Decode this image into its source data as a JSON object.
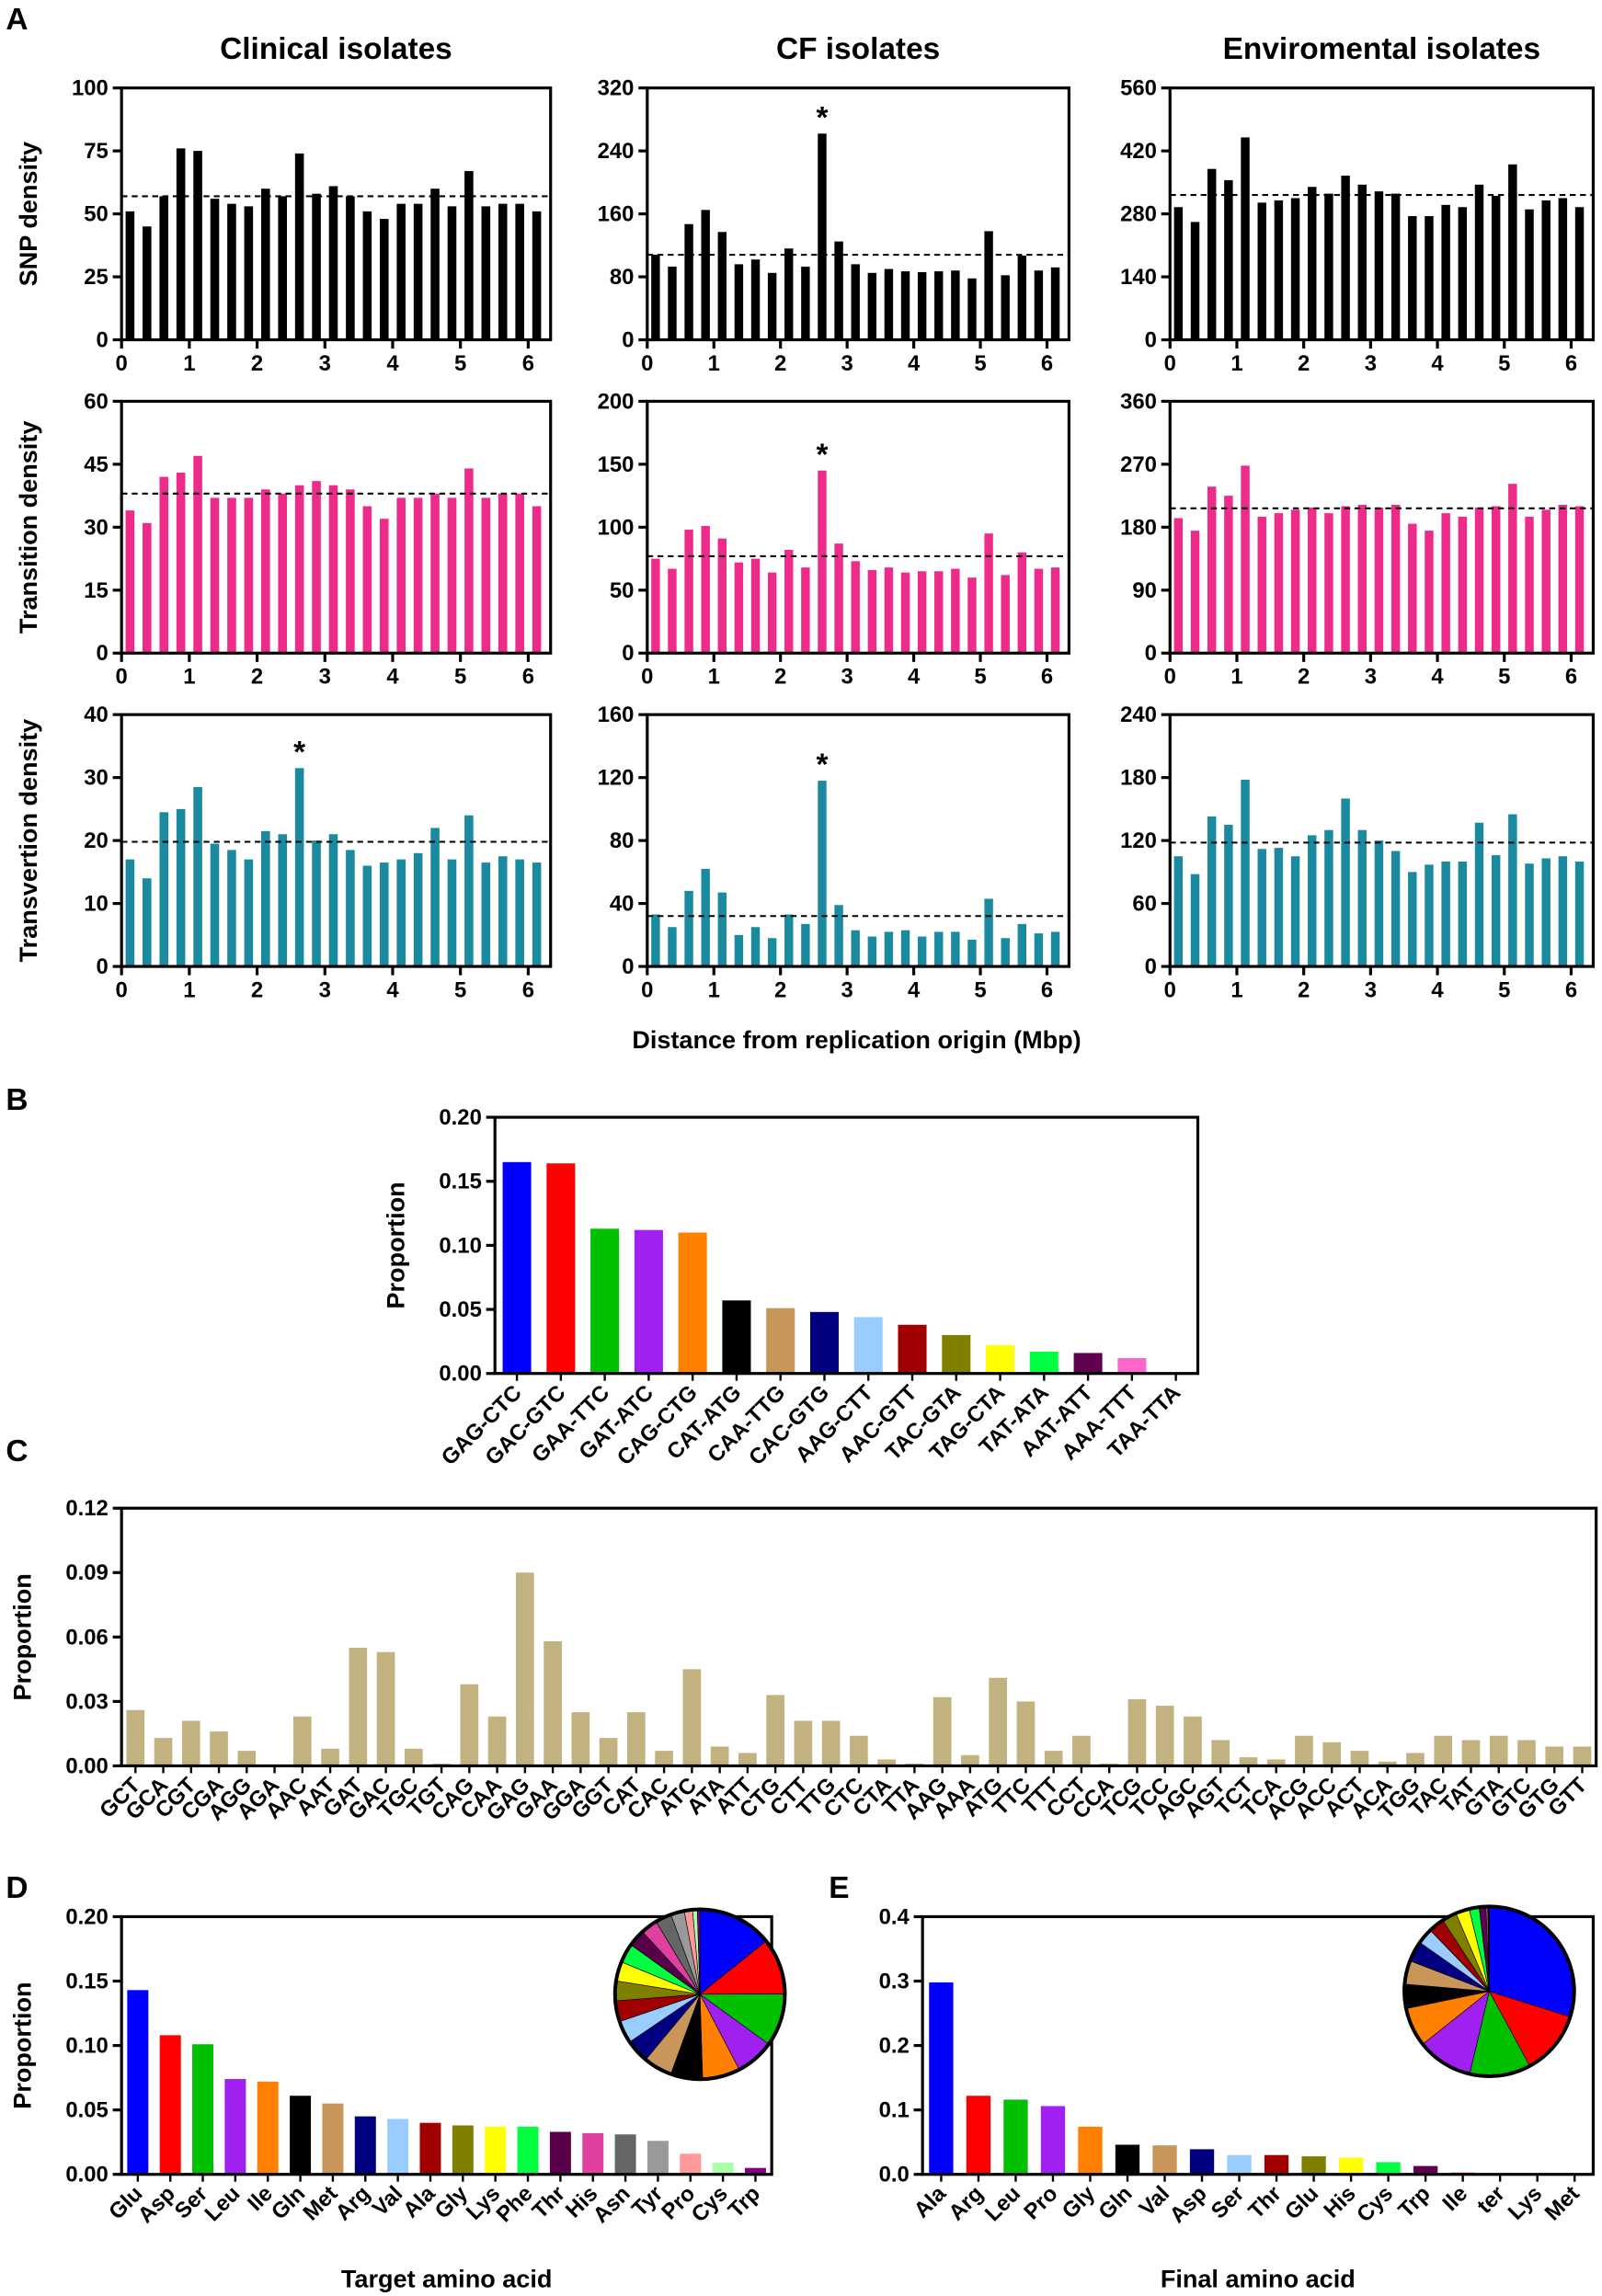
{
  "panel_labels": [
    "A",
    "B",
    "C",
    "D",
    "E"
  ],
  "shared_xlabel": "Distance from replication origin (Mbp)",
  "chart_data": [
    {
      "type": "bar",
      "title": "Clinical isolates",
      "ylabel": "SNP density",
      "color": "#000000",
      "x": [
        0.125,
        0.375,
        0.625,
        0.875,
        1.125,
        1.375,
        1.625,
        1.875,
        2.125,
        2.375,
        2.625,
        2.875,
        3.125,
        3.375,
        3.625,
        3.875,
        4.125,
        4.375,
        4.625,
        4.875,
        5.125,
        5.375,
        5.625,
        5.875,
        6.125
      ],
      "values": [
        51,
        45,
        57,
        76,
        75,
        56,
        54,
        53,
        60,
        57,
        74,
        58,
        61,
        57,
        51,
        48,
        54,
        54,
        60,
        53,
        67,
        53,
        54,
        54,
        51
      ],
      "xlim": [
        0,
        6.33
      ],
      "xticks": [
        0,
        1,
        2,
        3,
        4,
        5,
        6
      ],
      "ylim": [
        0,
        100
      ],
      "yticks": [
        0,
        25,
        50,
        75,
        100
      ],
      "mean_line": 57,
      "annotations": []
    },
    {
      "type": "bar",
      "title": "CF isolates",
      "color": "#000000",
      "x": [
        0.125,
        0.375,
        0.625,
        0.875,
        1.125,
        1.375,
        1.625,
        1.875,
        2.125,
        2.375,
        2.625,
        2.875,
        3.125,
        3.375,
        3.625,
        3.875,
        4.125,
        4.375,
        4.625,
        4.875,
        5.125,
        5.375,
        5.625,
        5.875,
        6.125
      ],
      "values": [
        108,
        93,
        147,
        165,
        137,
        96,
        102,
        85,
        116,
        93,
        262,
        125,
        96,
        85,
        90,
        87,
        86,
        87,
        88,
        78,
        138,
        82,
        107,
        88,
        92
      ],
      "xlim": [
        0,
        6.33
      ],
      "xticks": [
        0,
        1,
        2,
        3,
        4,
        5,
        6
      ],
      "ylim": [
        0,
        320
      ],
      "yticks": [
        0,
        80,
        160,
        240,
        320
      ],
      "mean_line": 108,
      "annotations": [
        {
          "text": "*",
          "x": 2.625
        }
      ]
    },
    {
      "type": "bar",
      "title": "Enviromental isolates",
      "color": "#000000",
      "x": [
        0.125,
        0.375,
        0.625,
        0.875,
        1.125,
        1.375,
        1.625,
        1.875,
        2.125,
        2.375,
        2.625,
        2.875,
        3.125,
        3.375,
        3.625,
        3.875,
        4.125,
        4.375,
        4.625,
        4.875,
        5.125,
        5.375,
        5.625,
        5.875,
        6.125
      ],
      "values": [
        295,
        262,
        380,
        355,
        450,
        305,
        310,
        315,
        340,
        325,
        365,
        345,
        330,
        325,
        275,
        275,
        300,
        295,
        345,
        320,
        390,
        290,
        310,
        315,
        295
      ],
      "xlim": [
        0,
        6.33
      ],
      "xticks": [
        0,
        1,
        2,
        3,
        4,
        5,
        6
      ],
      "ylim": [
        0,
        560
      ],
      "yticks": [
        0,
        140,
        280,
        420,
        560
      ],
      "mean_line": 322,
      "annotations": []
    },
    {
      "type": "bar",
      "ylabel": "Transition density",
      "color": "#ee2a8a",
      "x": [
        0.125,
        0.375,
        0.625,
        0.875,
        1.125,
        1.375,
        1.625,
        1.875,
        2.125,
        2.375,
        2.625,
        2.875,
        3.125,
        3.375,
        3.625,
        3.875,
        4.125,
        4.375,
        4.625,
        4.875,
        5.125,
        5.375,
        5.625,
        5.875,
        6.125
      ],
      "values": [
        34,
        31,
        42,
        43,
        47,
        37,
        37,
        37,
        39,
        38,
        40,
        41,
        40,
        39,
        35,
        32,
        37,
        37,
        38,
        37,
        44,
        37,
        38,
        38,
        35
      ],
      "xlim": [
        0,
        6.33
      ],
      "xticks": [
        0,
        1,
        2,
        3,
        4,
        5,
        6
      ],
      "ylim": [
        0,
        60
      ],
      "yticks": [
        0,
        15,
        30,
        45,
        60
      ],
      "mean_line": 38,
      "annotations": []
    },
    {
      "type": "bar",
      "color": "#ee2a8a",
      "x": [
        0.125,
        0.375,
        0.625,
        0.875,
        1.125,
        1.375,
        1.625,
        1.875,
        2.125,
        2.375,
        2.625,
        2.875,
        3.125,
        3.375,
        3.625,
        3.875,
        4.125,
        4.375,
        4.625,
        4.875,
        5.125,
        5.375,
        5.625,
        5.875,
        6.125
      ],
      "values": [
        75,
        67,
        98,
        101,
        91,
        72,
        75,
        64,
        82,
        68,
        145,
        87,
        73,
        66,
        68,
        64,
        65,
        65,
        67,
        60,
        95,
        62,
        80,
        67,
        68
      ],
      "xlim": [
        0,
        6.33
      ],
      "xticks": [
        0,
        1,
        2,
        3,
        4,
        5,
        6
      ],
      "ylim": [
        0,
        200
      ],
      "yticks": [
        0,
        50,
        100,
        150,
        200
      ],
      "mean_line": 77,
      "annotations": [
        {
          "text": "*",
          "x": 2.625
        }
      ]
    },
    {
      "type": "bar",
      "color": "#ee2a8a",
      "x": [
        0.125,
        0.375,
        0.625,
        0.875,
        1.125,
        1.375,
        1.625,
        1.875,
        2.125,
        2.375,
        2.625,
        2.875,
        3.125,
        3.375,
        3.625,
        3.875,
        4.125,
        4.375,
        4.625,
        4.875,
        5.125,
        5.375,
        5.625,
        5.875,
        6.125
      ],
      "values": [
        193,
        175,
        238,
        225,
        268,
        195,
        200,
        205,
        208,
        200,
        210,
        212,
        208,
        212,
        185,
        175,
        200,
        195,
        208,
        210,
        242,
        195,
        205,
        212,
        210
      ],
      "xlim": [
        0,
        6.33
      ],
      "xticks": [
        0,
        1,
        2,
        3,
        4,
        5,
        6
      ],
      "ylim": [
        0,
        360
      ],
      "yticks": [
        0,
        90,
        180,
        270,
        360
      ],
      "mean_line": 207,
      "annotations": []
    },
    {
      "type": "bar",
      "ylabel": "Transvertion density",
      "color": "#1a8aa0",
      "x": [
        0.125,
        0.375,
        0.625,
        0.875,
        1.125,
        1.375,
        1.625,
        1.875,
        2.125,
        2.375,
        2.625,
        2.875,
        3.125,
        3.375,
        3.625,
        3.875,
        4.125,
        4.375,
        4.625,
        4.875,
        5.125,
        5.375,
        5.625,
        5.875,
        6.125
      ],
      "values": [
        17,
        14,
        24.5,
        25,
        28.5,
        19.5,
        18.5,
        17,
        21.5,
        21,
        31.5,
        20,
        21,
        18.5,
        16,
        16.5,
        17,
        18,
        22,
        17,
        24,
        16.5,
        17.5,
        17,
        16.5
      ],
      "xlim": [
        0,
        6.33
      ],
      "xticks": [
        0,
        1,
        2,
        3,
        4,
        5,
        6
      ],
      "ylim": [
        0,
        40
      ],
      "yticks": [
        0,
        10,
        20,
        30,
        40
      ],
      "mean_line": 19.8,
      "annotations": [
        {
          "text": "*",
          "x": 2.625
        }
      ]
    },
    {
      "type": "bar",
      "color": "#1a8aa0",
      "x": [
        0.125,
        0.375,
        0.625,
        0.875,
        1.125,
        1.375,
        1.625,
        1.875,
        2.125,
        2.375,
        2.625,
        2.875,
        3.125,
        3.375,
        3.625,
        3.875,
        4.125,
        4.375,
        4.625,
        4.875,
        5.125,
        5.375,
        5.625,
        5.875,
        6.125
      ],
      "values": [
        33,
        25,
        48,
        62,
        47,
        20,
        25,
        18,
        33,
        27,
        118,
        39,
        23,
        19,
        22,
        23,
        19,
        22,
        22,
        17,
        43,
        18,
        27,
        21,
        22
      ],
      "xlim": [
        0,
        6.33
      ],
      "xticks": [
        0,
        1,
        2,
        3,
        4,
        5,
        6
      ],
      "ylim": [
        0,
        160
      ],
      "yticks": [
        0,
        40,
        80,
        120,
        160
      ],
      "mean_line": 32,
      "annotations": [
        {
          "text": "*",
          "x": 2.625
        }
      ]
    },
    {
      "type": "bar",
      "color": "#1a8aa0",
      "x": [
        0.125,
        0.375,
        0.625,
        0.875,
        1.125,
        1.375,
        1.625,
        1.875,
        2.125,
        2.375,
        2.625,
        2.875,
        3.125,
        3.375,
        3.625,
        3.875,
        4.125,
        4.375,
        4.625,
        4.875,
        5.125,
        5.375,
        5.625,
        5.875,
        6.125
      ],
      "values": [
        105,
        88,
        143,
        135,
        178,
        112,
        113,
        105,
        125,
        130,
        160,
        130,
        120,
        110,
        90,
        97,
        100,
        100,
        137,
        106,
        145,
        98,
        103,
        105,
        100
      ],
      "xlim": [
        0,
        6.33
      ],
      "xticks": [
        0,
        1,
        2,
        3,
        4,
        5,
        6
      ],
      "ylim": [
        0,
        240
      ],
      "yticks": [
        0,
        60,
        120,
        180,
        240
      ],
      "mean_line": 118,
      "annotations": []
    },
    {
      "type": "bar",
      "ylabel": "Proportion",
      "categories": [
        "GAG-CTC",
        "GAC-GTC",
        "GAA-TTC",
        "GAT-ATC",
        "CAG-CTG",
        "CAT-ATG",
        "CAA-TTG",
        "CAC-GTG",
        "AAG-CTT",
        "AAC-GTT",
        "TAC-GTA",
        "TAG-CTA",
        "TAT-ATA",
        "AAT-ATT",
        "AAA-TTT",
        "TAA-TTA"
      ],
      "values": [
        0.165,
        0.164,
        0.113,
        0.112,
        0.11,
        0.057,
        0.051,
        0.048,
        0.044,
        0.038,
        0.03,
        0.022,
        0.017,
        0.016,
        0.012,
        0
      ],
      "colors": [
        "#0000ff",
        "#ff0000",
        "#00c000",
        "#a020f0",
        "#ff8000",
        "#000000",
        "#c8965a",
        "#000080",
        "#99ccff",
        "#a00000",
        "#808000",
        "#ffff00",
        "#00ff40",
        "#600050",
        "#ff66cc",
        "#808080"
      ],
      "ylim": [
        0,
        0.2
      ],
      "yticks": [
        {
          "value": 0,
          "label": "0.00"
        },
        {
          "value": 0.05,
          "label": "0.05"
        },
        {
          "value": 0.1,
          "label": "0.10"
        },
        {
          "value": 0.15,
          "label": "0.15"
        },
        {
          "value": 0.2,
          "label": "0.20"
        }
      ]
    },
    {
      "type": "bar",
      "ylabel": "Proportion",
      "color": "#c2b280",
      "categories": [
        "GCT",
        "GCA",
        "CGT",
        "CGA",
        "AGG",
        "AGA",
        "AAC",
        "AAT",
        "GAT",
        "GAC",
        "TGC",
        "TGT",
        "CAG",
        "CAA",
        "GAG",
        "GAA",
        "GGA",
        "GGT",
        "CAT",
        "CAC",
        "ATC",
        "ATA",
        "ATT",
        "CTG",
        "CTT",
        "TTG",
        "CTC",
        "CTA",
        "TTA",
        "AAG",
        "AAA",
        "ATG",
        "TTC",
        "TTT",
        "CCT",
        "CCA",
        "TCG",
        "TCC",
        "AGC",
        "AGT",
        "TCT",
        "TCA",
        "ACG",
        "ACC",
        "ACT",
        "ACA",
        "TGG",
        "TAC",
        "TAT",
        "GTA",
        "GTC",
        "GTG",
        "GTT"
      ],
      "values": [
        0.026,
        0.013,
        0.021,
        0.016,
        0.007,
        0,
        0.023,
        0.008,
        0.055,
        0.053,
        0.008,
        0.001,
        0.038,
        0.023,
        0.09,
        0.058,
        0.025,
        0.013,
        0.025,
        0.007,
        0.045,
        0.009,
        0.006,
        0.033,
        0.021,
        0.021,
        0.014,
        0.003,
        0.001,
        0.032,
        0.005,
        0.041,
        0.03,
        0.007,
        0.014,
        0.001,
        0.031,
        0.028,
        0.023,
        0.012,
        0.004,
        0.003,
        0.014,
        0.011,
        0.007,
        0.002,
        0.006,
        0.014,
        0.012,
        0.014,
        0.012,
        0.009,
        0.009
      ],
      "ylim": [
        0,
        0.12
      ],
      "yticks": [
        {
          "value": 0,
          "label": "0.00"
        },
        {
          "value": 0.03,
          "label": "0.03"
        },
        {
          "value": 0.06,
          "label": "0.06"
        },
        {
          "value": 0.09,
          "label": "0.09"
        },
        {
          "value": 0.12,
          "label": "0.12"
        }
      ]
    },
    {
      "type": "bar",
      "ylabel": "Proportion",
      "xlabel": "Target amino acid",
      "inset": "pie",
      "categories": [
        "Glu",
        "Asp",
        "Ser",
        "Leu",
        "Ile",
        "Gln",
        "Met",
        "Arg",
        "Val",
        "Ala",
        "Gly",
        "Lys",
        "Phe",
        "Thr",
        "His",
        "Asn",
        "Tyr",
        "Pro",
        "Cys",
        "Trp"
      ],
      "values": [
        0.143,
        0.108,
        0.101,
        0.074,
        0.072,
        0.061,
        0.055,
        0.045,
        0.043,
        0.04,
        0.038,
        0.037,
        0.037,
        0.033,
        0.032,
        0.031,
        0.026,
        0.016,
        0.009,
        0.005
      ],
      "colors": [
        "#0000ff",
        "#ff0000",
        "#00c000",
        "#a020f0",
        "#ff8000",
        "#000000",
        "#c8965a",
        "#000080",
        "#99ccff",
        "#a00000",
        "#808000",
        "#ffff00",
        "#00ff40",
        "#5a004a",
        "#e040a0",
        "#666666",
        "#999999",
        "#ff9999",
        "#aaffaa",
        "#800080"
      ],
      "ylim": [
        0,
        0.2
      ],
      "yticks": [
        {
          "value": 0,
          "label": "0.00"
        },
        {
          "value": 0.05,
          "label": "0.05"
        },
        {
          "value": 0.1,
          "label": "0.10"
        },
        {
          "value": 0.15,
          "label": "0.15"
        },
        {
          "value": 0.2,
          "label": "0.20"
        }
      ]
    },
    {
      "type": "bar",
      "xlabel": "Final amino acid",
      "inset": "pie",
      "categories": [
        "Ala",
        "Arg",
        "Leu",
        "Pro",
        "Gly",
        "Gln",
        "Val",
        "Asp",
        "Ser",
        "Thr",
        "Glu",
        "His",
        "Cys",
        "Trp",
        "Ile",
        "ter",
        "Lys",
        "Met"
      ],
      "values": [
        0.298,
        0.122,
        0.116,
        0.106,
        0.074,
        0.046,
        0.045,
        0.039,
        0.03,
        0.03,
        0.028,
        0.026,
        0.019,
        0.013,
        0.003,
        0.001,
        0.001,
        0.001
      ],
      "colors": [
        "#0000ff",
        "#ff0000",
        "#00c000",
        "#a020f0",
        "#ff8000",
        "#000000",
        "#c8965a",
        "#000080",
        "#99ccff",
        "#a00000",
        "#808000",
        "#ffff00",
        "#00ff40",
        "#600050",
        "#ff66cc",
        "#666666",
        "#999999",
        "#ff9999"
      ],
      "ylim": [
        0,
        0.4
      ],
      "yticks": [
        {
          "value": 0,
          "label": "0.0"
        },
        {
          "value": 0.1,
          "label": "0.1"
        },
        {
          "value": 0.2,
          "label": "0.2"
        },
        {
          "value": 0.3,
          "label": "0.3"
        },
        {
          "value": 0.4,
          "label": "0.4"
        }
      ]
    }
  ]
}
